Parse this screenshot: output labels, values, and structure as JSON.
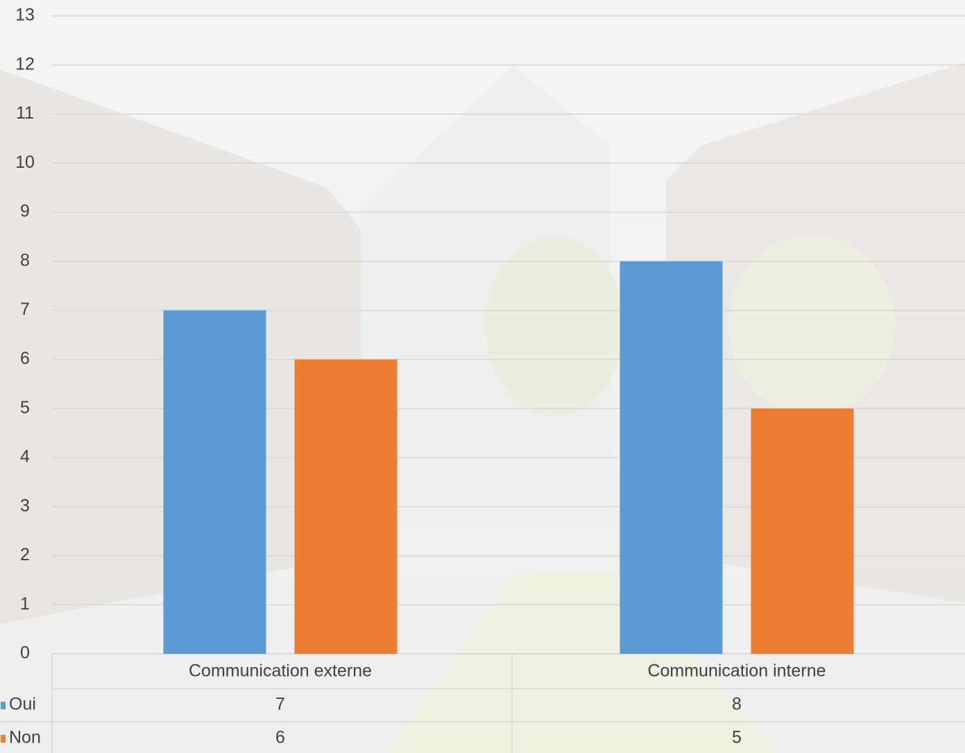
{
  "chart_data": {
    "type": "bar",
    "categories": [
      "Communication externe",
      "Communication interne"
    ],
    "series": [
      {
        "name": "Oui",
        "color": "#5b9bd5",
        "values": [
          7,
          8
        ]
      },
      {
        "name": "Non",
        "color": "#ed7d31",
        "values": [
          6,
          5
        ]
      }
    ],
    "ylim": [
      0,
      13
    ],
    "yticks": [
      0,
      1,
      2,
      3,
      4,
      5,
      6,
      7,
      8,
      9,
      10,
      11,
      12,
      13
    ],
    "grid": true
  }
}
